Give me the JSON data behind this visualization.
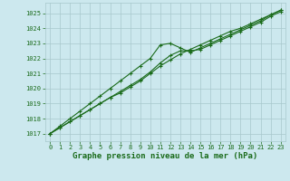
{
  "title": "Graphe pression niveau de la mer (hPa)",
  "bg_color": "#cce8ee",
  "plot_bg_color": "#cce8ee",
  "grid_color": "#a8c8cc",
  "line_color": "#1a6b1a",
  "marker_color": "#1a6b1a",
  "hours": [
    0,
    1,
    2,
    3,
    4,
    5,
    6,
    7,
    8,
    9,
    10,
    11,
    12,
    13,
    14,
    15,
    16,
    17,
    18,
    19,
    20,
    21,
    22,
    23
  ],
  "line1": [
    1017.0,
    1017.4,
    1017.8,
    1018.2,
    1018.6,
    1019.0,
    1019.4,
    1019.7,
    1020.1,
    1020.5,
    1021.0,
    1021.5,
    1021.9,
    1022.3,
    1022.6,
    1022.9,
    1023.2,
    1023.5,
    1023.8,
    1024.0,
    1024.3,
    1024.6,
    1024.9,
    1025.2
  ],
  "line2": [
    1017.0,
    1017.5,
    1018.0,
    1018.5,
    1019.0,
    1019.5,
    1020.0,
    1020.5,
    1021.0,
    1021.5,
    1022.0,
    1022.9,
    1023.0,
    1022.7,
    1022.4,
    1022.7,
    1023.0,
    1023.3,
    1023.6,
    1023.9,
    1024.2,
    1024.5,
    1024.9,
    1025.2
  ],
  "line3": [
    1017.0,
    1017.4,
    1017.8,
    1018.2,
    1018.6,
    1019.0,
    1019.4,
    1019.8,
    1020.2,
    1020.6,
    1021.1,
    1021.7,
    1022.2,
    1022.5,
    1022.5,
    1022.6,
    1022.9,
    1023.2,
    1023.5,
    1023.8,
    1024.1,
    1024.4,
    1024.8,
    1025.1
  ],
  "ylim": [
    1016.5,
    1025.7
  ],
  "xlim": [
    -0.5,
    23.5
  ],
  "yticks": [
    1017,
    1018,
    1019,
    1020,
    1021,
    1022,
    1023,
    1024,
    1025
  ],
  "xticks": [
    0,
    1,
    2,
    3,
    4,
    5,
    6,
    7,
    8,
    9,
    10,
    11,
    12,
    13,
    14,
    15,
    16,
    17,
    18,
    19,
    20,
    21,
    22,
    23
  ],
  "title_fontsize": 6.5,
  "tick_fontsize": 5.0,
  "lw": 0.8
}
